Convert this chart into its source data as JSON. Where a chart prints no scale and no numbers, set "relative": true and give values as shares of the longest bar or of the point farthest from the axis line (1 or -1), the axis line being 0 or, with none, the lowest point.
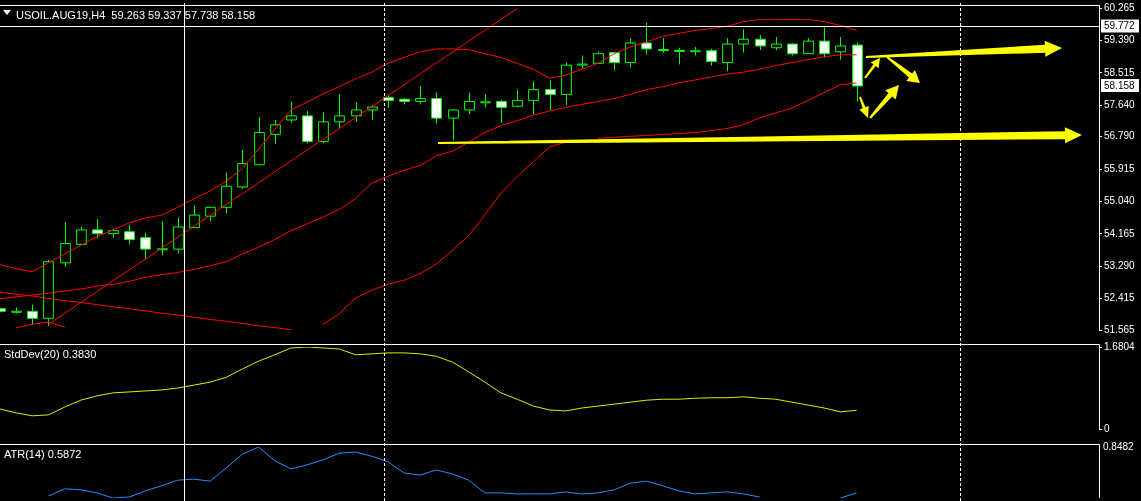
{
  "chart_data": [
    {
      "type": "candlestick",
      "title": "USOIL.AUG19,H4  59.263 59.337 57.738 58.158",
      "color": "#00ff00",
      "tick_labels": "y",
      "colors": [
        "#ffffff",
        "#000000",
        "#ffffff",
        "#000000",
        "#000000",
        "#000000",
        "#ffffff",
        "#000000",
        "#ffffff",
        "#ffffff",
        "#000000",
        "#000000",
        "#000000",
        "#000000",
        "#000000",
        "#000000",
        "#000000",
        "#000000",
        "#000000",
        "#ffffff",
        "#000000",
        "#000000",
        "#000000",
        "#000000",
        "#ffffff",
        "#ffffff",
        "#000000",
        "#ffffff",
        "#000000",
        "#000000",
        "#000000",
        "#ffffff",
        "#000000",
        "#000000",
        "#ffffff",
        "#000000",
        "#000000",
        "#000000",
        "#ffffff",
        "#000000",
        "#ffffff",
        "#ffffff",
        "#ffffff",
        "#000000",
        "#ffffff",
        "#000000",
        "#000000",
        "#ffffff",
        "#000000",
        "#ffffff",
        "#000000",
        "#ffffff",
        "#000000",
        "#ffffff",
        null,
        null,
        null,
        null,
        null,
        null,
        null,
        null,
        null,
        null,
        null,
        null,
        null,
        null,
        null
      ],
      "categories": [
        null,
        null,
        null,
        null,
        null,
        null,
        null,
        null,
        null,
        null,
        null,
        null,
        null,
        null,
        null,
        null,
        null,
        null,
        null,
        null,
        null,
        null,
        null,
        null,
        null,
        null,
        null,
        null,
        null,
        null,
        null,
        null,
        null,
        null,
        null,
        null,
        null,
        null,
        null,
        null,
        null,
        null,
        null,
        null,
        null,
        null,
        null,
        null,
        null,
        null,
        null,
        null,
        null,
        null,
        null,
        null,
        null,
        null,
        null,
        null,
        null,
        null,
        null,
        null,
        null,
        null,
        null,
        null,
        null
      ],
      "ohlc": [
        [
          52.14,
          52.16,
          52.05,
          52.07
        ],
        [
          52.06,
          52.17,
          52.01,
          52.07
        ],
        [
          52.07,
          52.25,
          51.7,
          51.88
        ],
        [
          51.88,
          53.46,
          51.67,
          53.41
        ],
        [
          53.38,
          54.48,
          53.27,
          53.9
        ],
        [
          53.88,
          54.35,
          53.88,
          54.27
        ],
        [
          54.27,
          54.56,
          54.04,
          54.17
        ],
        [
          54.17,
          54.3,
          54.06,
          54.25
        ],
        [
          54.22,
          54.4,
          53.88,
          54.01
        ],
        [
          54.06,
          54.19,
          53.48,
          53.75
        ],
        [
          53.74,
          54.51,
          53.59,
          53.76
        ],
        [
          53.75,
          54.61,
          53.64,
          54.35
        ],
        [
          54.33,
          54.93,
          54.33,
          54.67
        ],
        [
          54.64,
          54.9,
          54.51,
          54.88
        ],
        [
          54.88,
          55.82,
          54.72,
          55.45
        ],
        [
          55.43,
          56.43,
          55.38,
          56.06
        ],
        [
          56.03,
          57.32,
          56.01,
          56.9
        ],
        [
          56.85,
          57.24,
          56.59,
          57.11
        ],
        [
          57.24,
          57.74,
          57.16,
          57.35
        ],
        [
          57.35,
          57.48,
          56.61,
          56.66
        ],
        [
          56.66,
          57.45,
          56.61,
          57.19
        ],
        [
          57.19,
          57.93,
          57.01,
          57.35
        ],
        [
          57.35,
          57.72,
          57.19,
          57.51
        ],
        [
          57.51,
          57.64,
          57.24,
          57.59
        ],
        [
          57.85,
          57.93,
          57.56,
          57.77
        ],
        [
          57.8,
          57.82,
          57.66,
          57.74
        ],
        [
          57.74,
          58.16,
          57.66,
          57.82
        ],
        [
          57.82,
          57.98,
          57.14,
          57.29
        ],
        [
          57.29,
          57.53,
          56.69,
          57.51
        ],
        [
          57.51,
          57.98,
          57.4,
          57.74
        ],
        [
          57.72,
          57.93,
          57.58,
          57.73
        ],
        [
          57.74,
          57.79,
          57.16,
          57.58
        ],
        [
          57.61,
          58.06,
          57.58,
          57.77
        ],
        [
          57.77,
          58.29,
          57.4,
          58.06
        ],
        [
          58.06,
          58.32,
          57.51,
          57.93
        ],
        [
          57.93,
          58.79,
          57.64,
          58.72
        ],
        [
          58.74,
          58.98,
          58.64,
          58.75
        ],
        [
          58.77,
          59.09,
          58.77,
          59.03
        ],
        [
          59.06,
          59.08,
          58.58,
          58.79
        ],
        [
          58.79,
          59.45,
          58.66,
          59.32
        ],
        [
          59.32,
          59.87,
          59.0,
          59.16
        ],
        [
          59.14,
          59.45,
          59.06,
          59.13
        ],
        [
          59.12,
          59.19,
          58.74,
          59.1
        ],
        [
          59.1,
          59.21,
          58.98,
          59.11
        ],
        [
          59.11,
          59.16,
          58.71,
          58.82
        ],
        [
          58.79,
          59.45,
          58.56,
          59.29
        ],
        [
          59.29,
          59.69,
          59.06,
          59.42
        ],
        [
          59.42,
          59.53,
          59.13,
          59.24
        ],
        [
          59.19,
          59.48,
          59.13,
          59.29
        ],
        [
          59.29,
          59.32,
          58.98,
          59.03
        ],
        [
          59.03,
          59.45,
          59.03,
          59.37
        ],
        [
          59.37,
          59.74,
          58.92,
          59.03
        ],
        [
          59.08,
          59.48,
          58.87,
          59.24
        ],
        [
          59.263,
          59.337,
          57.738,
          58.158
        ],
        null,
        null,
        null,
        null,
        null,
        null,
        null,
        null,
        null,
        null,
        null,
        null,
        null,
        null,
        null
      ],
      "series": [
        {
          "type": "line",
          "color": "#ff0000",
          "values": [
            53.33,
            53.22,
            53.14,
            53.38,
            53.62,
            53.85,
            54.09,
            54.27,
            54.46,
            54.59,
            54.67,
            54.88,
            55.11,
            55.32,
            55.59,
            55.93,
            56.45,
            56.98,
            57.51,
            57.72,
            57.95,
            58.14,
            58.35,
            58.53,
            58.77,
            58.93,
            59.08,
            59.16,
            59.16,
            59.14,
            59.03,
            58.93,
            58.77,
            58.61,
            58.37,
            58.45,
            58.61,
            58.77,
            59.03,
            59.21,
            59.35,
            59.5,
            59.58,
            59.66,
            59.71,
            59.77,
            59.9,
            59.95,
            59.95,
            59.95,
            59.95,
            59.9,
            59.79,
            59.66,
            null,
            null,
            null,
            null,
            null,
            null,
            null,
            null,
            null,
            null,
            null,
            null,
            null,
            null,
            null
          ]
        },
        {
          "type": "line",
          "color": "#ff0000",
          "values": [
            52.41,
            52.46,
            52.51,
            52.56,
            52.62,
            52.67,
            52.75,
            52.8,
            52.88,
            52.99,
            53.06,
            53.12,
            53.2,
            53.3,
            53.41,
            53.62,
            53.8,
            54.01,
            54.25,
            54.43,
            54.62,
            54.83,
            55.11,
            55.53,
            55.72,
            55.88,
            56.01,
            56.27,
            56.4,
            56.64,
            56.9,
            57.09,
            57.22,
            57.37,
            57.48,
            57.58,
            57.66,
            57.74,
            57.82,
            57.93,
            58.06,
            58.14,
            58.24,
            58.32,
            58.4,
            58.48,
            58.53,
            58.61,
            58.71,
            58.79,
            58.87,
            58.95,
            59.0,
            59.0,
            null,
            null,
            null,
            null,
            null,
            null,
            null,
            null,
            null,
            null,
            null,
            null,
            null,
            null,
            null
          ]
        },
        {
          "type": "line",
          "color": "#ff0000",
          "values": [
            null,
            51.62,
            51.72,
            51.78,
            51.64,
            null,
            null,
            null,
            null,
            null,
            null,
            null,
            null,
            null,
            null,
            null,
            null,
            null,
            null,
            null,
            51.72,
            52.01,
            52.43,
            52.64,
            52.8,
            52.91,
            53.09,
            53.35,
            53.72,
            54.12,
            54.67,
            55.27,
            55.72,
            56.11,
            56.51,
            56.64,
            null,
            56.74,
            56.77,
            56.8,
            56.82,
            56.85,
            56.87,
            56.9,
            56.95,
            57.01,
            57.11,
            57.3,
            57.43,
            57.56,
            57.77,
            57.98,
            58.19,
            58.24,
            null,
            null,
            null,
            null,
            null,
            null,
            null,
            null,
            null,
            null,
            null,
            null,
            null,
            null,
            null
          ]
        },
        {
          "type": "line",
          "color": "#ff0000",
          "values": [
            null,
            null,
            null,
            51.72,
            52.01,
            52.31,
            52.6,
            52.9,
            53.19,
            53.48,
            53.78,
            54.07,
            54.37,
            54.66,
            54.96,
            55.25,
            55.54,
            55.84,
            56.13,
            56.43,
            56.72,
            57.01,
            57.31,
            57.6,
            57.9,
            58.19,
            58.49,
            58.78,
            59.07,
            59.37,
            59.66,
            59.96,
            60.25,
            null,
            null,
            null,
            null,
            null,
            null,
            null,
            null,
            null,
            null,
            null,
            null,
            null,
            null,
            null,
            null,
            null,
            null,
            null,
            null,
            null,
            null,
            null,
            null,
            null,
            null,
            null,
            null,
            null,
            null,
            null,
            null,
            null,
            null,
            null,
            null
          ]
        },
        {
          "type": "line",
          "color": "#ff0000",
          "values": [
            52.59,
            52.53,
            52.48,
            52.42,
            52.36,
            52.31,
            52.25,
            52.19,
            52.14,
            52.08,
            52.02,
            51.97,
            51.91,
            51.85,
            51.8,
            51.74,
            51.68,
            51.63,
            51.57,
            null,
            null,
            null,
            null,
            null,
            null,
            null,
            null,
            null,
            null,
            null,
            null,
            null,
            null,
            null,
            null,
            null,
            null,
            null,
            null,
            null,
            null,
            null,
            null,
            null,
            null,
            null,
            null,
            null,
            null,
            null,
            null,
            null,
            null,
            null,
            null,
            null,
            null,
            null,
            null,
            null,
            null,
            null,
            null,
            null,
            null,
            null,
            null,
            null,
            null
          ]
        }
      ],
      "ylim": [
        51.565,
        60.265
      ],
      "yticks": [
        60.265,
        {
          "value": 59.39,
          "label": "59.390"
        },
        58.515,
        {
          "value": 57.64,
          "label": "57.640"
        },
        {
          "value": 56.79,
          "label": "56.790"
        },
        55.915,
        {
          "value": 55.04,
          "label": "55.040"
        },
        54.165,
        {
          "value": 53.29,
          "label": "53.290"
        },
        52.415,
        51.565
      ],
      "ref_lines": [
        {
          "axis": "y",
          "value": 59.772,
          "label": "59.772",
          "color": "#ffffff"
        }
      ],
      "annotations": [
        {
          "text": "58.158",
          "y": 58.158
        }
      ]
    },
    {
      "type": "line",
      "title": "StdDev(20) 0.3830",
      "tick_labels": "y",
      "categories": [
        null,
        null,
        null,
        null,
        null,
        null,
        null,
        null,
        null,
        null,
        null,
        null,
        null,
        null,
        null,
        null,
        null,
        null,
        null,
        null,
        null,
        null,
        null,
        null,
        null,
        null,
        null,
        null,
        null,
        null,
        null,
        null,
        null,
        null,
        null,
        null,
        null,
        null,
        null,
        null,
        null,
        null,
        null,
        null,
        null,
        null,
        null,
        null,
        null,
        null,
        null,
        null,
        null,
        null,
        null,
        null,
        null,
        null,
        null,
        null,
        null,
        null,
        null,
        null,
        null,
        null,
        null,
        null,
        null
      ],
      "series": [
        {
          "color": "#e6e600",
          "values": [
            0.41,
            0.33,
            0.27,
            0.29,
            0.45,
            0.59,
            0.68,
            0.74,
            0.76,
            0.78,
            0.8,
            0.84,
            0.9,
            0.96,
            1.06,
            1.23,
            1.39,
            1.52,
            1.66,
            1.68,
            1.66,
            1.64,
            1.52,
            1.54,
            1.56,
            1.56,
            1.54,
            1.49,
            1.37,
            1.17,
            0.96,
            0.74,
            0.61,
            0.47,
            0.39,
            0.37,
            0.43,
            0.47,
            0.51,
            0.55,
            0.59,
            0.61,
            0.61,
            0.63,
            0.64,
            0.64,
            0.66,
            0.63,
            0.61,
            0.55,
            0.49,
            0.43,
            0.35,
            0.383,
            null,
            null,
            null,
            null,
            null,
            null,
            null,
            null,
            null,
            null,
            null,
            null,
            null,
            null,
            null
          ]
        }
      ],
      "ylim": [
        0,
        1.6804
      ],
      "yticks": [
        0,
        1.6804
      ]
    },
    {
      "type": "line",
      "title": "ATR(14) 0.5872",
      "relative": true,
      "tick_labels": false,
      "categories": [
        null,
        null,
        null,
        null,
        null,
        null,
        null,
        null,
        null,
        null,
        null,
        null,
        null,
        null,
        null,
        null,
        null,
        null,
        null,
        null,
        null,
        null,
        null,
        null,
        null,
        null,
        null,
        null,
        null,
        null,
        null,
        null,
        null,
        null,
        null,
        null,
        null,
        null,
        null,
        null,
        null,
        null,
        null,
        null,
        null,
        null,
        null,
        null,
        null,
        null,
        null,
        null,
        null,
        null,
        null,
        null,
        null,
        null,
        null,
        null,
        null,
        null,
        null,
        null,
        null,
        null,
        null,
        null,
        null
      ],
      "series": [
        {
          "color": "#1e90ff",
          "values": [
            null,
            null,
            null,
            0.04,
            0.18,
            0.16,
            0.1,
            0,
            0.02,
            0.14,
            0.24,
            0.35,
            0.37,
            0.33,
            0.59,
            0.86,
            1,
            0.73,
            0.57,
            0.65,
            0.75,
            0.88,
            0.9,
            0.82,
            0.71,
            0.49,
            0.45,
            0.55,
            0.47,
            0.35,
            0.1,
            0.1,
            0.08,
            0.08,
            0.08,
            0.12,
            0.08,
            0.1,
            0.16,
            0.29,
            0.33,
            0.24,
            0.14,
            0.08,
            0.1,
            0.12,
            0.08,
            0.02,
            null,
            null,
            null,
            null,
            0,
            0.1,
            null,
            null,
            null,
            null,
            null,
            null,
            null,
            null,
            null,
            null,
            null,
            null,
            null,
            null,
            null
          ]
        }
      ],
      "annotations": [
        "0.8482"
      ]
    }
  ]
}
